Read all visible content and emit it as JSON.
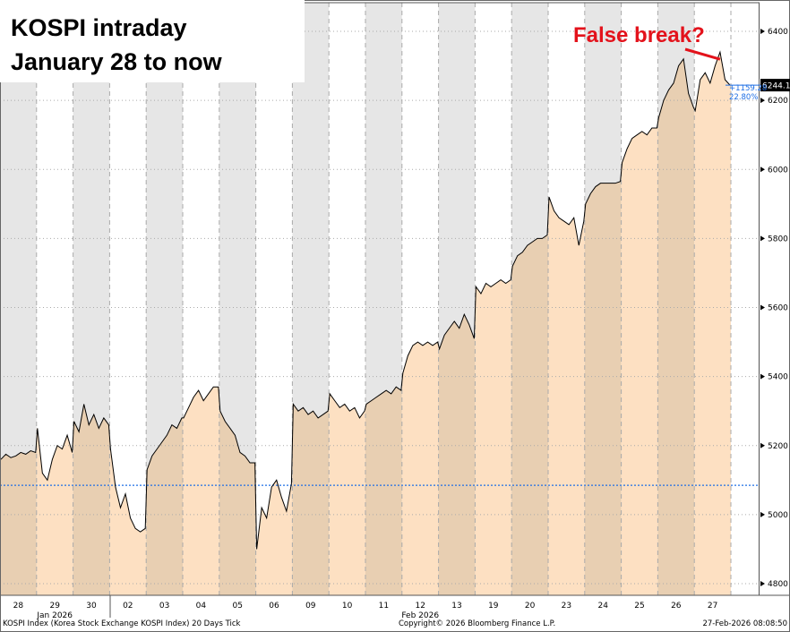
{
  "title_lines": [
    "KOSPI intraday",
    "January 28 to now"
  ],
  "annotation": "False break?",
  "footer": {
    "left": "KOSPI Index (Korea Stock Exchange KOSPI Index) 20 Days Tick",
    "center": "Copyright© 2026 Bloomberg Finance L.P.",
    "right": "27-Feb-2026 08:08:50"
  },
  "chart_data": {
    "type": "line",
    "title": "KOSPI intraday",
    "days": [
      "28",
      "29",
      "30",
      "02",
      "03",
      "04",
      "05",
      "06",
      "09",
      "10",
      "11",
      "12",
      "13",
      "19",
      "20",
      "23",
      "24",
      "25",
      "26",
      "27"
    ],
    "months": [
      {
        "label": "Jan 2026",
        "day_index": 1
      },
      {
        "label": "Feb 2026",
        "day_index": 11
      }
    ],
    "values": [
      [
        5160,
        5175,
        5165,
        5170,
        5180,
        5175,
        5185,
        5180
      ],
      [
        5250,
        5120,
        5100,
        5160,
        5200,
        5190,
        5230,
        5180
      ],
      [
        5270,
        5240,
        5320,
        5260,
        5290,
        5250,
        5280,
        5260
      ],
      [
        5190,
        5080,
        5020,
        5060,
        4990,
        4960,
        4950,
        4960
      ],
      [
        5130,
        5170,
        5190,
        5210,
        5230,
        5260,
        5250,
        5280
      ],
      [
        5280,
        5310,
        5340,
        5360,
        5330,
        5350,
        5370,
        5370
      ],
      [
        5300,
        5270,
        5250,
        5230,
        5180,
        5170,
        5150,
        5150
      ],
      [
        4900,
        5020,
        4990,
        5080,
        5100,
        5050,
        5010,
        5090
      ],
      [
        5320,
        5300,
        5310,
        5290,
        5300,
        5280,
        5290,
        5300
      ],
      [
        5350,
        5330,
        5310,
        5320,
        5300,
        5310,
        5280,
        5300
      ],
      [
        5320,
        5330,
        5340,
        5350,
        5360,
        5350,
        5370,
        5360
      ],
      [
        5410,
        5460,
        5490,
        5500,
        5490,
        5500,
        5490,
        5500
      ],
      [
        5480,
        5520,
        5540,
        5560,
        5540,
        5580,
        5550,
        5510
      ],
      [
        5660,
        5640,
        5670,
        5660,
        5670,
        5680,
        5670,
        5680
      ],
      [
        5720,
        5750,
        5760,
        5780,
        5790,
        5800,
        5800,
        5810
      ],
      [
        5920,
        5880,
        5860,
        5850,
        5840,
        5860,
        5780,
        5850
      ],
      [
        5900,
        5930,
        5950,
        5960,
        5960,
        5960,
        5960,
        5965
      ],
      [
        6020,
        6060,
        6090,
        6100,
        6110,
        6100,
        6120,
        6120
      ],
      [
        6150,
        6200,
        6230,
        6250,
        6300,
        6320,
        6220,
        6180
      ],
      [
        6170,
        6260,
        6280,
        6250,
        6300,
        6340,
        6260,
        6244.13
      ]
    ],
    "yticks": [
      4800,
      5000,
      5200,
      5400,
      5600,
      5800,
      6000,
      6200,
      6400
    ],
    "ylim": [
      4800,
      6400
    ],
    "last_value": "6244.13",
    "change_abs": "+1159.28",
    "change_pct": "22.80%",
    "reference_level": 5084.85,
    "colors": {
      "line": "#000000",
      "fill_light": "#fde0c2",
      "fill_dark": "#e8cfb2",
      "band_gray": "#e6e6e6",
      "ref_line": "#1f6fe5",
      "annotation": "#e3121b"
    }
  }
}
